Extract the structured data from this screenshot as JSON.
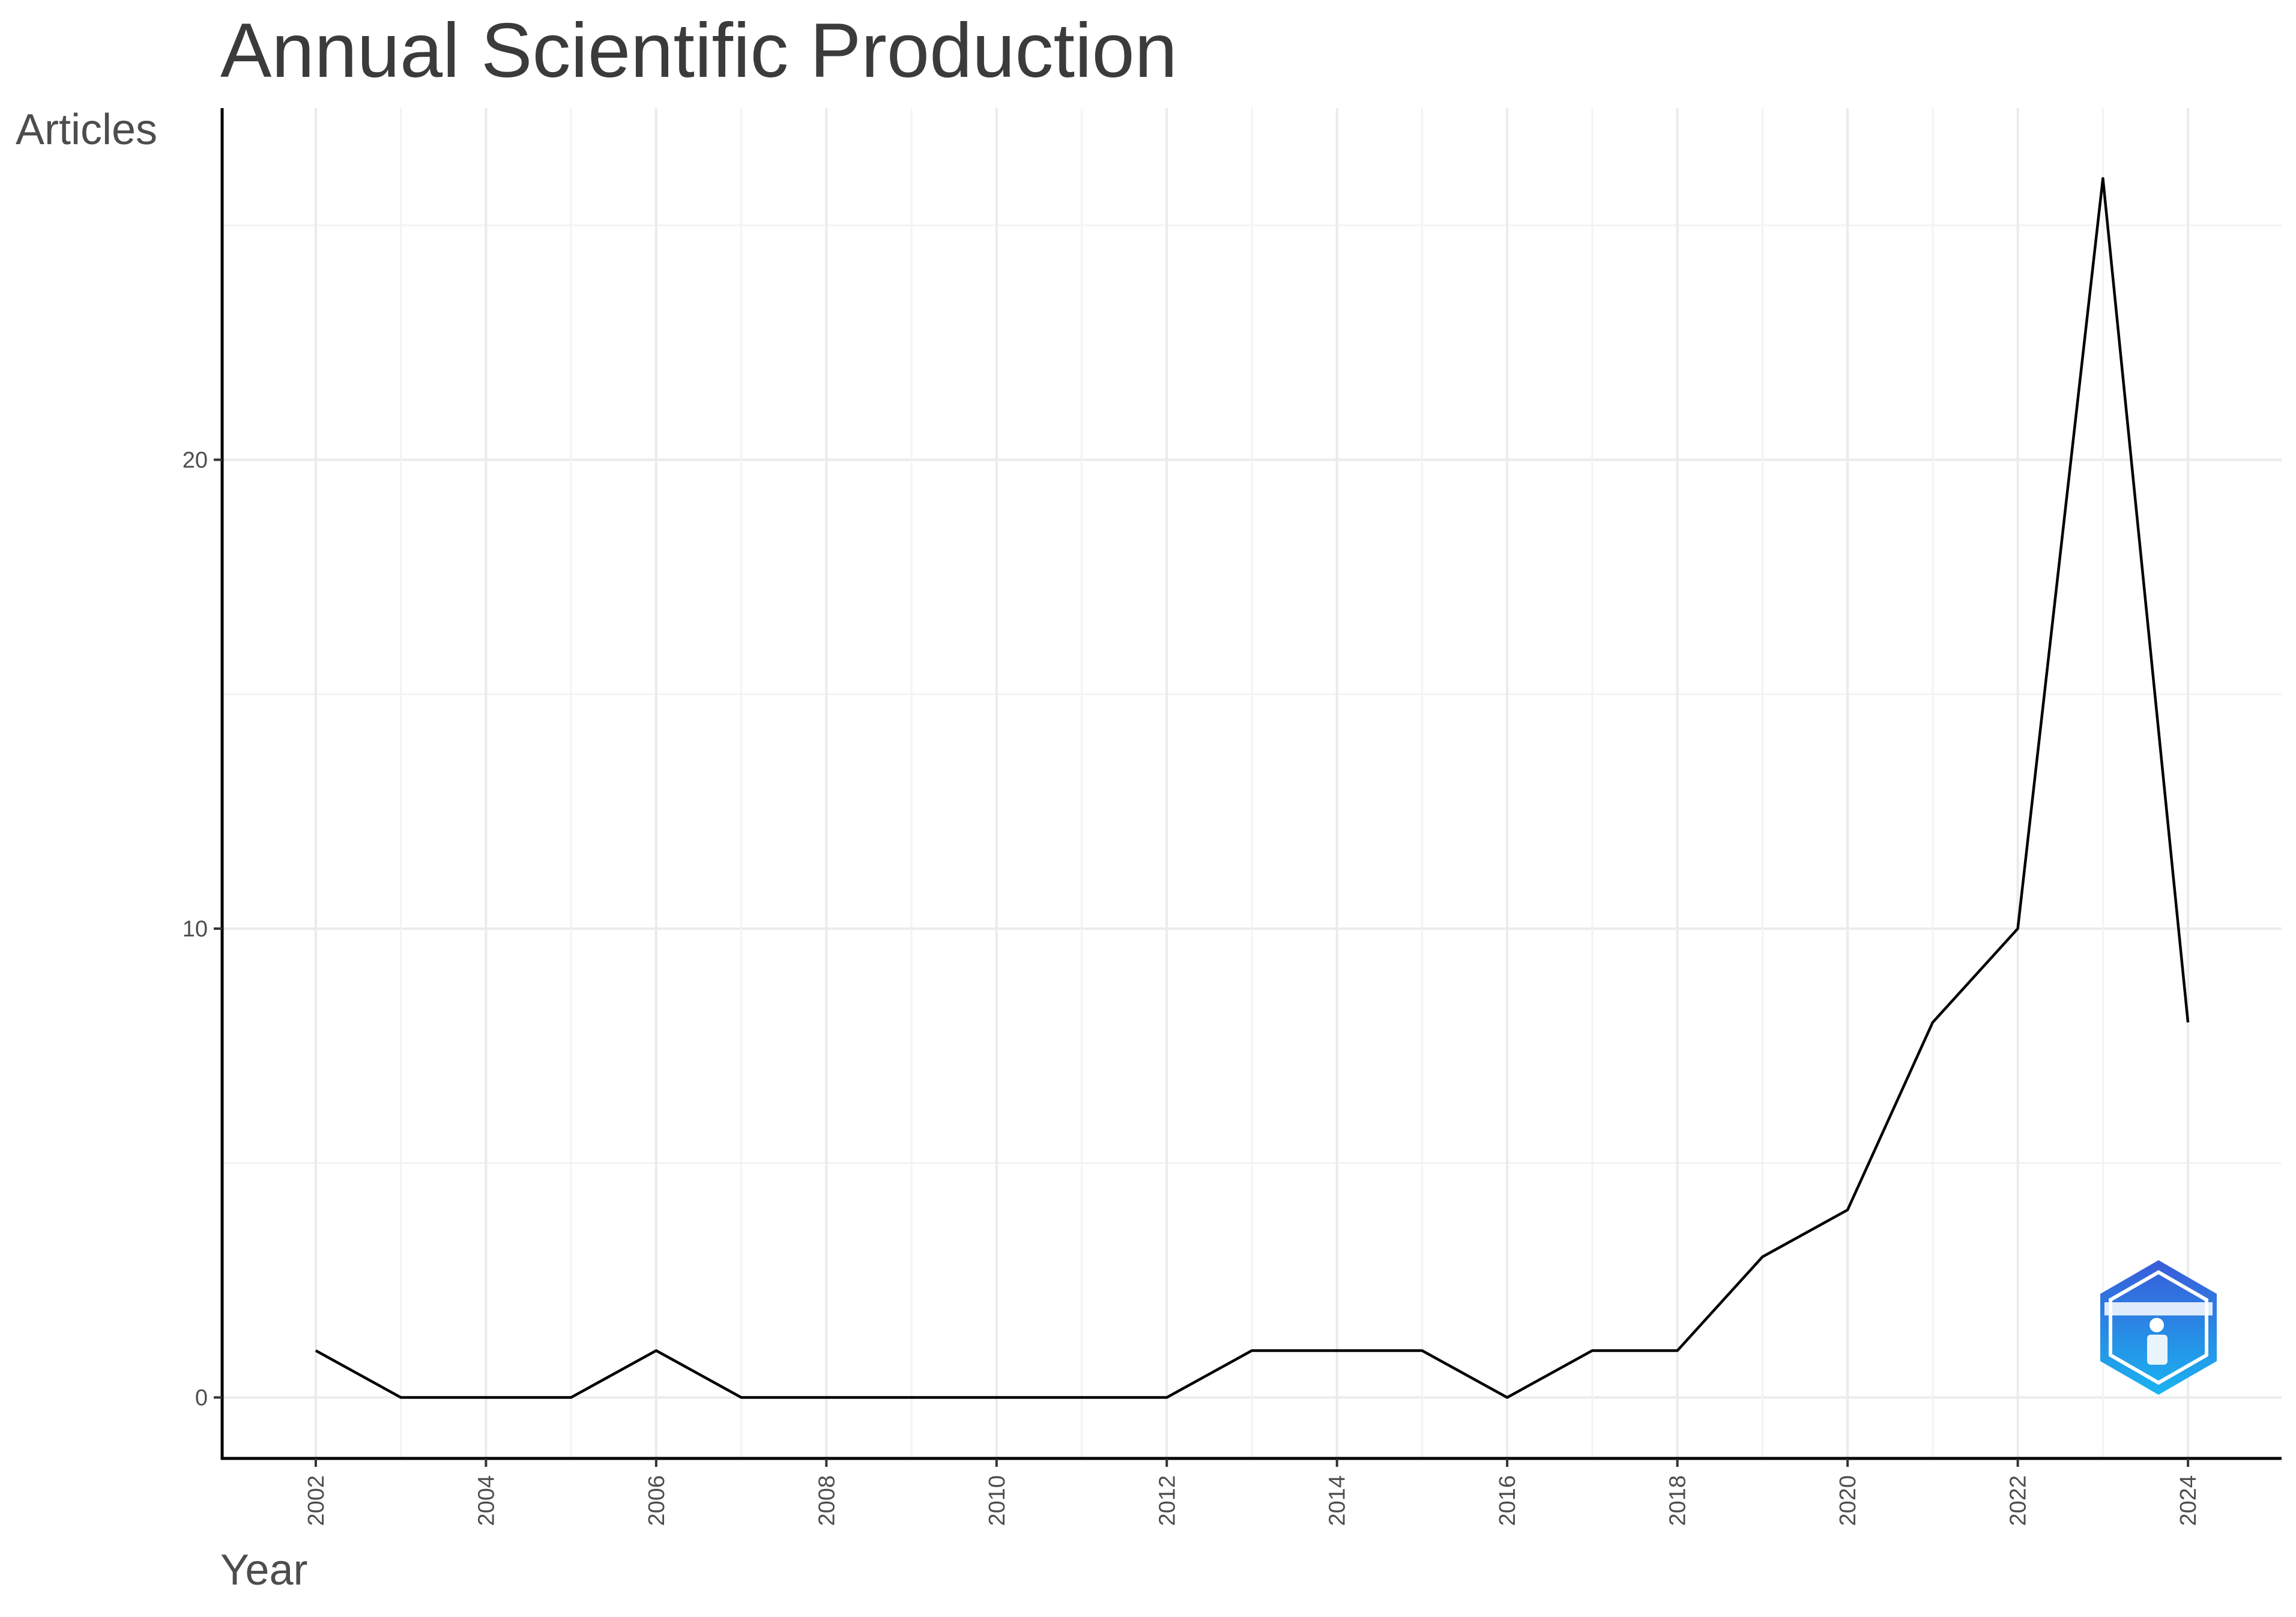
{
  "chart_data": {
    "type": "line",
    "title": "Annual Scientific Production",
    "xlabel": "Year",
    "ylabel": "Articles",
    "x": [
      2002,
      2003,
      2004,
      2005,
      2006,
      2007,
      2008,
      2009,
      2010,
      2011,
      2012,
      2013,
      2014,
      2015,
      2016,
      2017,
      2018,
      2019,
      2020,
      2021,
      2022,
      2023,
      2024
    ],
    "values": [
      1,
      0,
      0,
      0,
      1,
      0,
      0,
      0,
      0,
      0,
      0,
      1,
      1,
      1,
      0,
      1,
      1,
      3,
      4,
      8,
      10,
      26,
      8
    ],
    "x_ticks": [
      "2002",
      "2004",
      "2006",
      "2008",
      "2010",
      "2012",
      "2014",
      "2016",
      "2018",
      "2020",
      "2022",
      "2024"
    ],
    "y_ticks": [
      "0",
      "10",
      "20"
    ],
    "xlim": [
      2000.9,
      2025.1
    ],
    "ylim": [
      -1.3,
      27.5
    ],
    "grid": true,
    "line_color": "#000000",
    "logo": {
      "icon": "biblioshiny-hexagon-logo",
      "color_top": "#3a5bd9",
      "color_bottom": "#19b4f0"
    }
  }
}
